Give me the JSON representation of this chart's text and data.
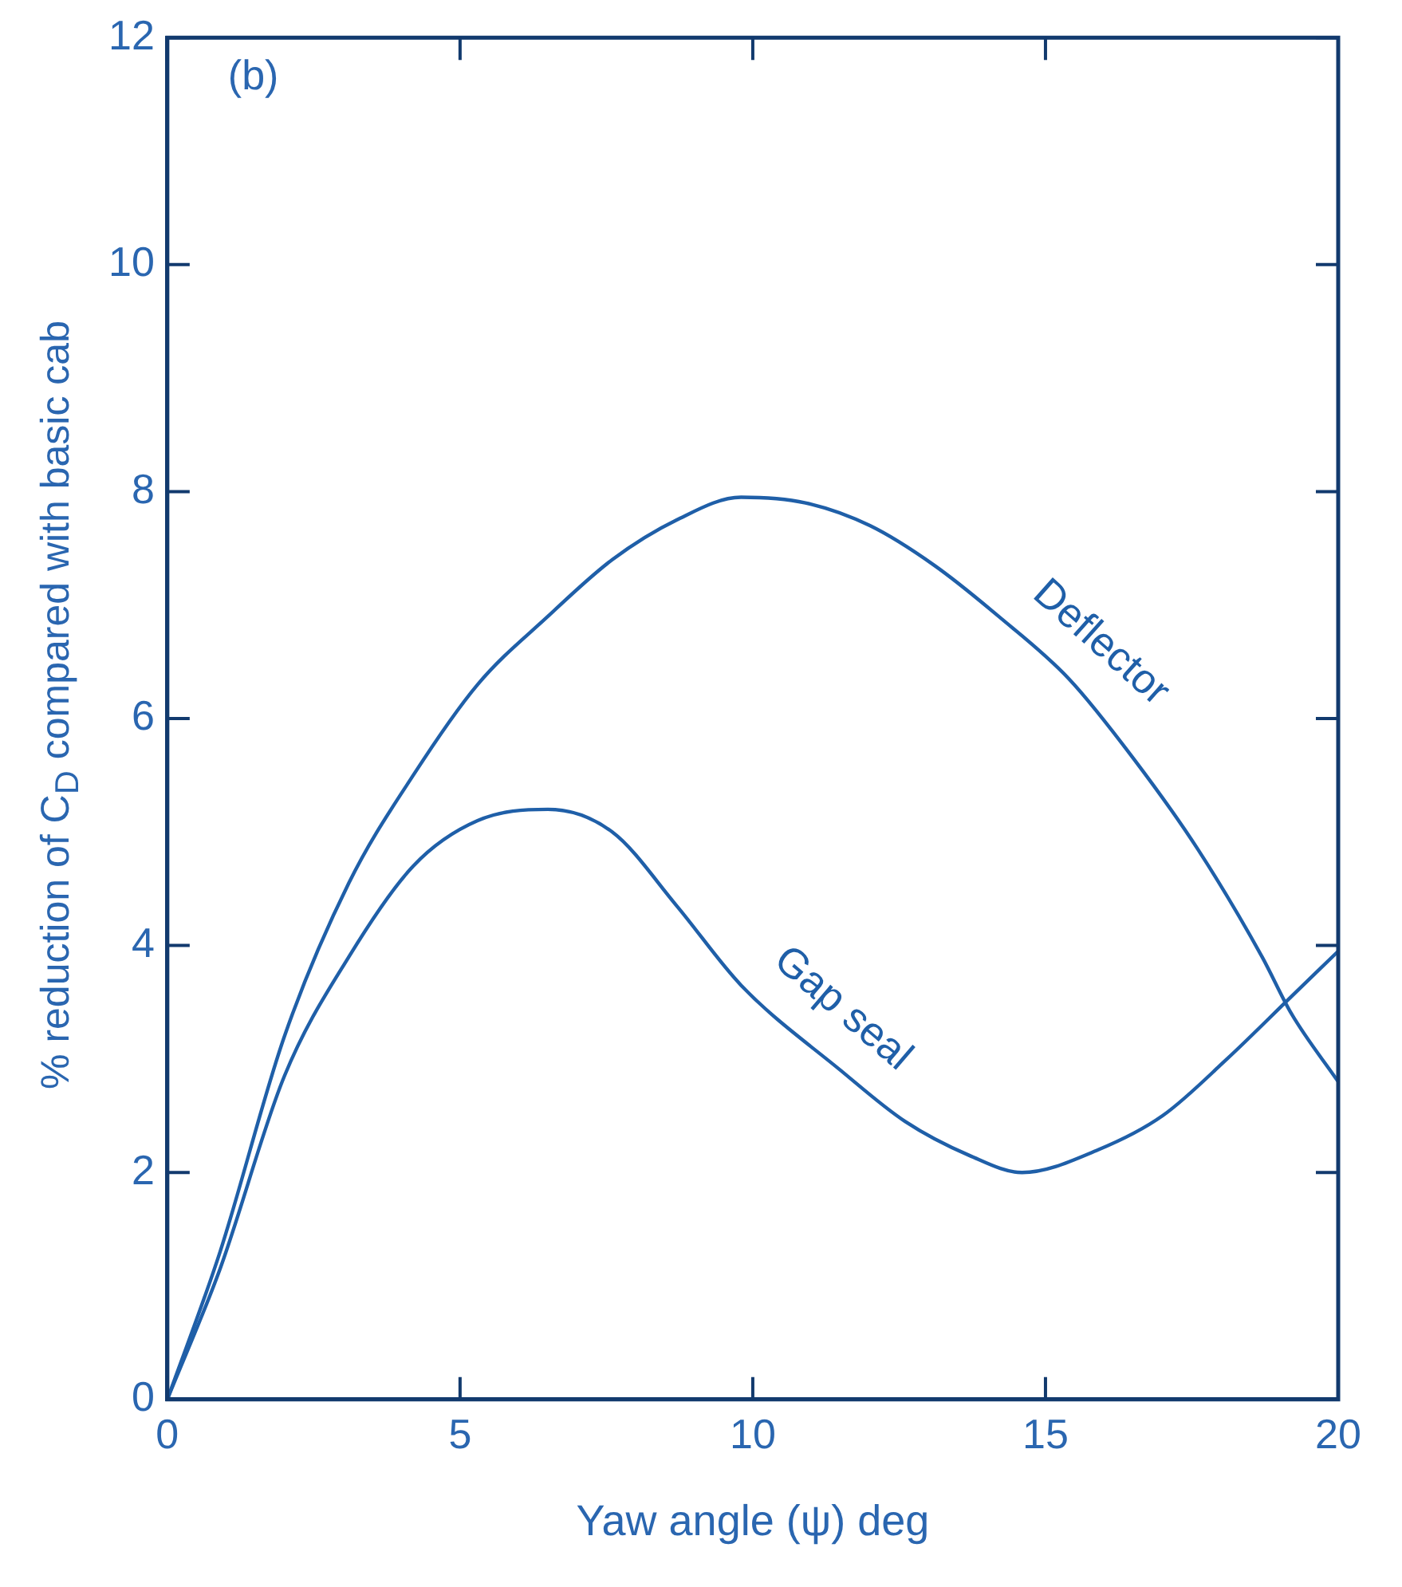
{
  "chart_data": {
    "type": "line",
    "xlabel": "Yaw angle (ψ) deg",
    "ylabel": "% reduction of C$_{D}$ compared with basic cab",
    "annotations": [
      "(b)"
    ],
    "xlim": [
      0,
      20
    ],
    "xticks": [
      0,
      5,
      10,
      15,
      20
    ],
    "ylim": [
      0,
      12
    ],
    "yticks": [
      0,
      2,
      4,
      6,
      8,
      10,
      12
    ],
    "grid": false,
    "legend": false,
    "marker": "none",
    "line_style": "solid",
    "series": [
      {
        "name": "Deflector",
        "color": "#1f5fa8",
        "x": [
          0,
          0.9,
          2.0,
          3.1,
          4.2,
          5.3,
          6.5,
          7.6,
          8.7,
          9.8,
          10.9,
          12.0,
          13.1,
          14.2,
          15.4,
          16.5,
          17.6,
          18.7,
          19.2,
          20
        ],
        "values": [
          0,
          1.3,
          3.2,
          4.55,
          5.5,
          6.3,
          6.9,
          7.4,
          7.75,
          7.95,
          7.9,
          7.7,
          7.35,
          6.9,
          6.35,
          5.65,
          4.85,
          3.9,
          3.4,
          2.8
        ]
      },
      {
        "name": "Gap seal",
        "color": "#1f5fa8",
        "x": [
          0,
          0.9,
          2.0,
          3.1,
          4.2,
          5.3,
          6.5,
          7.6,
          8.7,
          9.8,
          11.5,
          12.6,
          13.7,
          14.6,
          15.9,
          17.0,
          18.1,
          19.2,
          20
        ],
        "values": [
          0,
          1.15,
          2.85,
          3.9,
          4.7,
          5.1,
          5.2,
          5.0,
          4.35,
          3.65,
          2.9,
          2.45,
          2.15,
          2.0,
          2.2,
          2.5,
          3.0,
          3.55,
          3.95
        ]
      }
    ]
  }
}
